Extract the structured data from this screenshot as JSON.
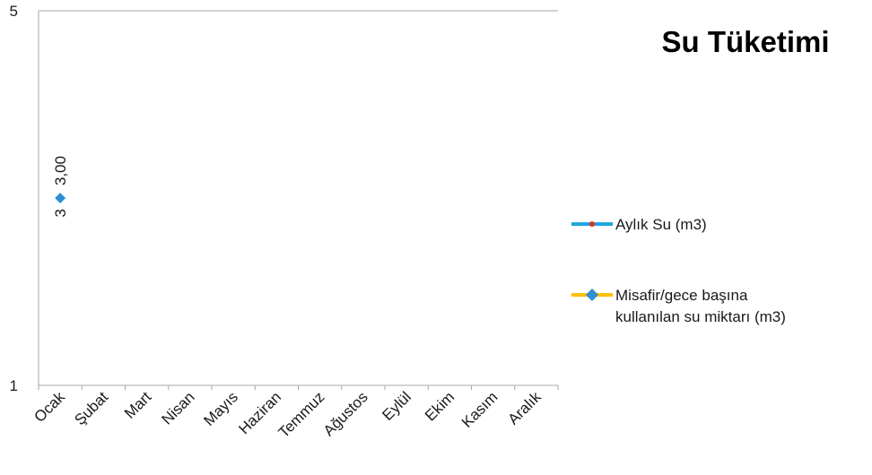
{
  "chart_data": {
    "type": "line",
    "title": "Su Tüketimi",
    "categories": [
      "Ocak",
      "Şubat",
      "Mart",
      "Nisan",
      "Mayıs",
      "Haziran",
      "Temmuz",
      "Ağustos",
      "Eylül",
      "Ekim",
      "Kasım",
      "Aralık"
    ],
    "yticks": [
      "1",
      "5"
    ],
    "ylim": [
      1,
      5
    ],
    "xlabel": "",
    "ylabel": "",
    "grid": false,
    "legend_position": "right",
    "series": [
      {
        "name": "Aylık Su (m3)",
        "line_color": "#1ea7e1",
        "marker_color": "#e0301e",
        "values": [
          null,
          null,
          null,
          null,
          null,
          null,
          null,
          null,
          null,
          null,
          null,
          null
        ]
      },
      {
        "name": "Misafir/gece başına kullanılan su miktarı (m3)",
        "line_color": "#ffc000",
        "marker_color": "#2e8fd4",
        "values": [
          3,
          null,
          null,
          null,
          null,
          null,
          null,
          null,
          null,
          null,
          null,
          null
        ],
        "data_labels": [
          "3",
          "3,00"
        ]
      }
    ]
  }
}
